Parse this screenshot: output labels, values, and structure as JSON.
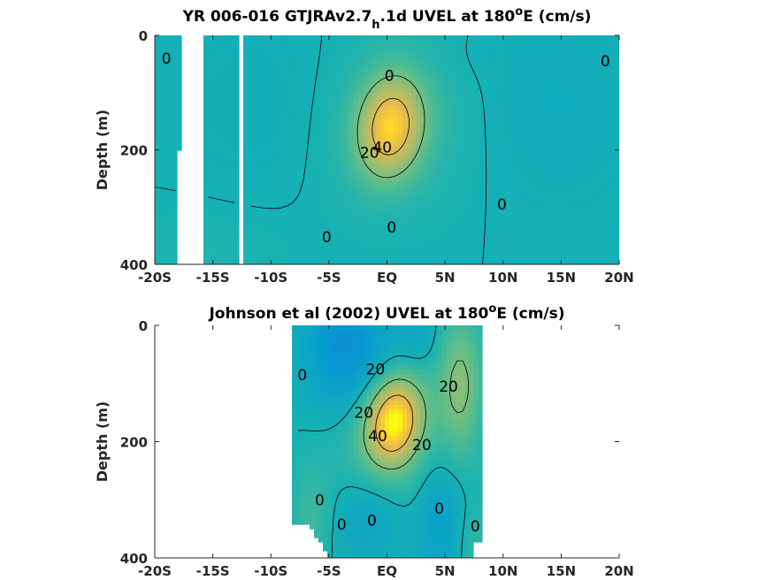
{
  "chart_data": [
    {
      "type": "heatmap",
      "title_main": "YR 006-016 GTJRAv2.7",
      "title_sub": "h",
      "title_rest": ".1d UVEL at 180",
      "title_sup": "o",
      "title_end": "E (cm/s)",
      "ylabel": "Depth (m)",
      "xlim": [
        -20,
        20
      ],
      "ylim": [
        0,
        400
      ],
      "y_reversed": true,
      "x_ticks": [
        -20,
        -15,
        -10,
        -5,
        0,
        5,
        10,
        15,
        20
      ],
      "x_tick_labels": [
        "-20S",
        "-15S",
        "-10S",
        "-5S",
        "EQ",
        "5N",
        "10N",
        "15N",
        "20N"
      ],
      "y_ticks": [
        0,
        200,
        400
      ],
      "y_tick_labels": [
        "0",
        "200",
        "400"
      ],
      "contour_levels": [
        0,
        20,
        40
      ],
      "contour_labels": [
        {
          "text": "0",
          "lon": -19.0,
          "depth": 40
        },
        {
          "text": "0",
          "lon": 0.2,
          "depth": 70
        },
        {
          "text": "0",
          "lon": 18.8,
          "depth": 45
        },
        {
          "text": "40",
          "lon": -0.4,
          "depth": 195
        },
        {
          "text": "20",
          "lon": -1.5,
          "depth": 205
        },
        {
          "text": "0",
          "lon": 9.9,
          "depth": 295
        },
        {
          "text": "0",
          "lon": 0.4,
          "depth": 335
        },
        {
          "text": "0",
          "lon": -5.2,
          "depth": 352
        }
      ],
      "jet_core": {
        "lon": 0.3,
        "depth": 160,
        "max_cm_s": 48
      },
      "missing_lon_bands": [
        [
          -17.7,
          -15.8
        ],
        [
          -12.9,
          -12.2
        ]
      ],
      "missing_partial": {
        "lon": [
          -18.1,
          -17.7
        ],
        "depth_from": 200
      }
    },
    {
      "type": "heatmap",
      "title_main": "Johnson et al (2002) UVEL at 180",
      "title_sup": "o",
      "title_end": "E (cm/s)",
      "ylabel": "Depth (m)",
      "xlim": [
        -20,
        20
      ],
      "ylim": [
        0,
        400
      ],
      "y_reversed": true,
      "x_ticks": [
        -20,
        -15,
        -10,
        -5,
        0,
        5,
        10,
        15,
        20
      ],
      "x_tick_labels": [
        "-20S",
        "-15S",
        "-10S",
        "-5S",
        "EQ",
        "5N",
        "10N",
        "15N",
        "20N"
      ],
      "y_ticks": [
        0,
        200,
        400
      ],
      "y_tick_labels": [
        "0",
        "200",
        "400"
      ],
      "data_lon_range": [
        -8,
        8
      ],
      "contour_levels": [
        0,
        20,
        40
      ],
      "contour_labels": [
        {
          "text": "0",
          "lon": -7.3,
          "depth": 85
        },
        {
          "text": "20",
          "lon": -1.0,
          "depth": 75
        },
        {
          "text": "20",
          "lon": 5.3,
          "depth": 105
        },
        {
          "text": "20",
          "lon": -2.0,
          "depth": 150
        },
        {
          "text": "40",
          "lon": -0.8,
          "depth": 190
        },
        {
          "text": "20",
          "lon": 3.0,
          "depth": 205
        },
        {
          "text": "0",
          "lon": -5.8,
          "depth": 300
        },
        {
          "text": "0",
          "lon": 4.5,
          "depth": 315
        },
        {
          "text": "0",
          "lon": -1.3,
          "depth": 335
        },
        {
          "text": "0",
          "lon": -3.9,
          "depth": 342
        },
        {
          "text": "0",
          "lon": 7.6,
          "depth": 345
        }
      ],
      "jet_core": {
        "lon": 0.3,
        "depth": 165,
        "max_cm_s": 50
      }
    }
  ]
}
